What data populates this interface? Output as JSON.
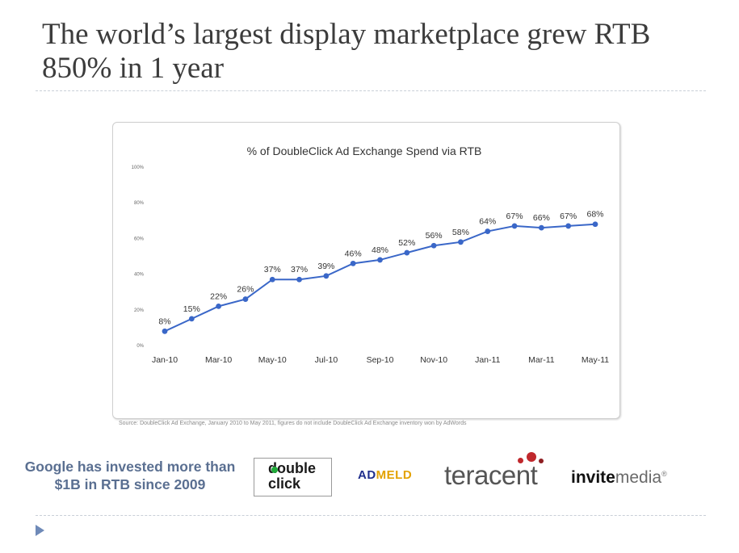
{
  "slide": {
    "title": "The world’s largest display marketplace grew RTB 850% in 1 year",
    "source_note": "Source: DoubleClick Ad Exchange, January 2010 to May 2011, figures do not include DoubleClick Ad Exchange inventory won by AdWords",
    "investment_text": "Google has invested more than $1B in RTB since 2009"
  },
  "logos": {
    "doubleclick_line1": "double",
    "doubleclick_line2": "click",
    "admeld_ad": "AD",
    "admeld_meld": "MELD",
    "teracent": "teracent",
    "invitemedia_invite": "invite",
    "invitemedia_media": "media",
    "invitemedia_reg": "®"
  },
  "colors": {
    "series": "#3a67c8",
    "title_text": "#3c3c3c",
    "invest_text": "#5a6f91",
    "bullet": "#6f8ab8",
    "teracent_dot_red": "#c0282d",
    "teracent_dot_dark": "#8e1e22",
    "doubleclick_dot": "#1faa39"
  },
  "chart_data": {
    "type": "line",
    "title": "% of DoubleClick Ad Exchange Spend via RTB",
    "x": [
      "Jan-10",
      "Feb-10",
      "Mar-10",
      "Apr-10",
      "May-10",
      "Jun-10",
      "Jul-10",
      "Aug-10",
      "Sep-10",
      "Oct-10",
      "Nov-10",
      "Dec-10",
      "Jan-11",
      "Feb-11",
      "Mar-11",
      "Apr-11",
      "May-11"
    ],
    "x_tick_labels": [
      "Jan-10",
      "Mar-10",
      "May-10",
      "Jul-10",
      "Sep-10",
      "Nov-10",
      "Jan-11",
      "Mar-11",
      "May-11"
    ],
    "values": [
      8,
      15,
      22,
      26,
      37,
      37,
      39,
      46,
      48,
      52,
      56,
      58,
      64,
      67,
      66,
      67,
      68
    ],
    "data_labels": [
      "8%",
      "15%",
      "22%",
      "26%",
      "37%",
      "37%",
      "39%",
      "46%",
      "48%",
      "52%",
      "56%",
      "58%",
      "64%",
      "67%",
      "66%",
      "67%",
      "68%"
    ],
    "y_tick_labels": [
      "0%",
      "20%",
      "40%",
      "60%",
      "80%",
      "100%"
    ],
    "y_ticks": [
      0,
      20,
      40,
      60,
      80,
      100
    ],
    "ylim": [
      0,
      100
    ],
    "xlabel": "",
    "ylabel": "",
    "grid": false,
    "legend": "none"
  }
}
